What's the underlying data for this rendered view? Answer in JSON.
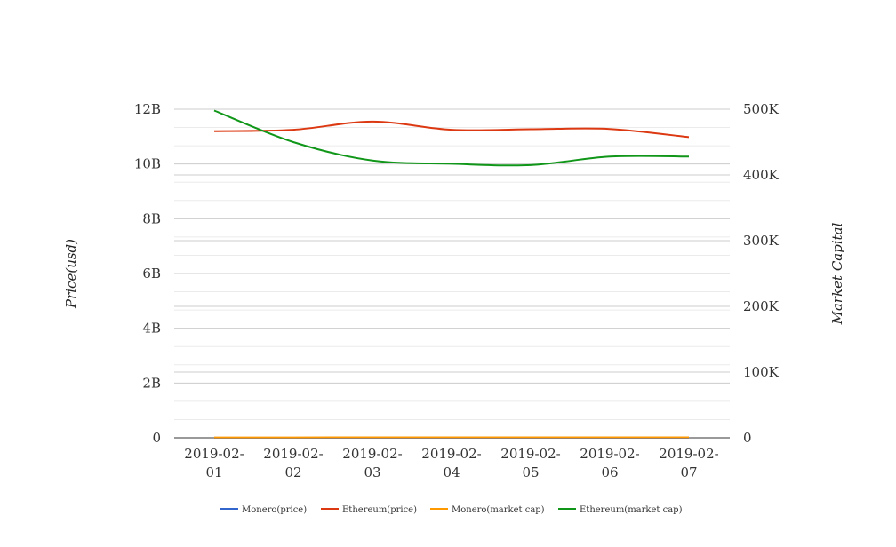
{
  "chart_data": {
    "type": "line",
    "title": "",
    "categories": [
      "2019-02-01",
      "2019-02-02",
      "2019-02-03",
      "2019-02-04",
      "2019-02-05",
      "2019-02-06",
      "2019-02-07"
    ],
    "category_labels": [
      [
        "2019-02-",
        "01"
      ],
      [
        "2019-02-",
        "02"
      ],
      [
        "2019-02-",
        "03"
      ],
      [
        "2019-02-",
        "04"
      ],
      [
        "2019-02-",
        "05"
      ],
      [
        "2019-02-",
        "06"
      ],
      [
        "2019-02-",
        "07"
      ]
    ],
    "y_left": {
      "label": "Price(usd)",
      "ylim": [
        0,
        12000000000
      ],
      "ticks": [
        0,
        2000000000,
        4000000000,
        6000000000,
        8000000000,
        10000000000,
        12000000000
      ],
      "tick_labels": [
        "0",
        "2B",
        "4B",
        "6B",
        "8B",
        "10B",
        "12B"
      ]
    },
    "y_right": {
      "label": "Market Capital",
      "ylim": [
        0,
        500000
      ],
      "ticks": [
        0,
        100000,
        200000,
        300000,
        400000,
        500000
      ],
      "tick_labels": [
        "0",
        "100K",
        "200K",
        "300K",
        "400K",
        "500K"
      ]
    },
    "grid": true,
    "legend_position": "bottom",
    "series": [
      {
        "name": "Monero(price)",
        "axis": "left",
        "color": "#3366cc",
        "values": [
          0,
          0,
          0,
          0,
          0,
          0,
          0
        ]
      },
      {
        "name": "Ethereum(price)",
        "axis": "left",
        "color": "#dc3912",
        "values": [
          11200000000,
          11250000000,
          11550000000,
          11250000000,
          11270000000,
          11280000000,
          10980000000
        ]
      },
      {
        "name": "Monero(market cap)",
        "axis": "right",
        "color": "#ff9900",
        "values": [
          500,
          600,
          700,
          700,
          700,
          700,
          700
        ]
      },
      {
        "name": "Ethereum(market cap)",
        "axis": "right",
        "color": "#109618",
        "values": [
          498000,
          450000,
          422000,
          417000,
          415000,
          428000,
          428000
        ]
      }
    ]
  }
}
